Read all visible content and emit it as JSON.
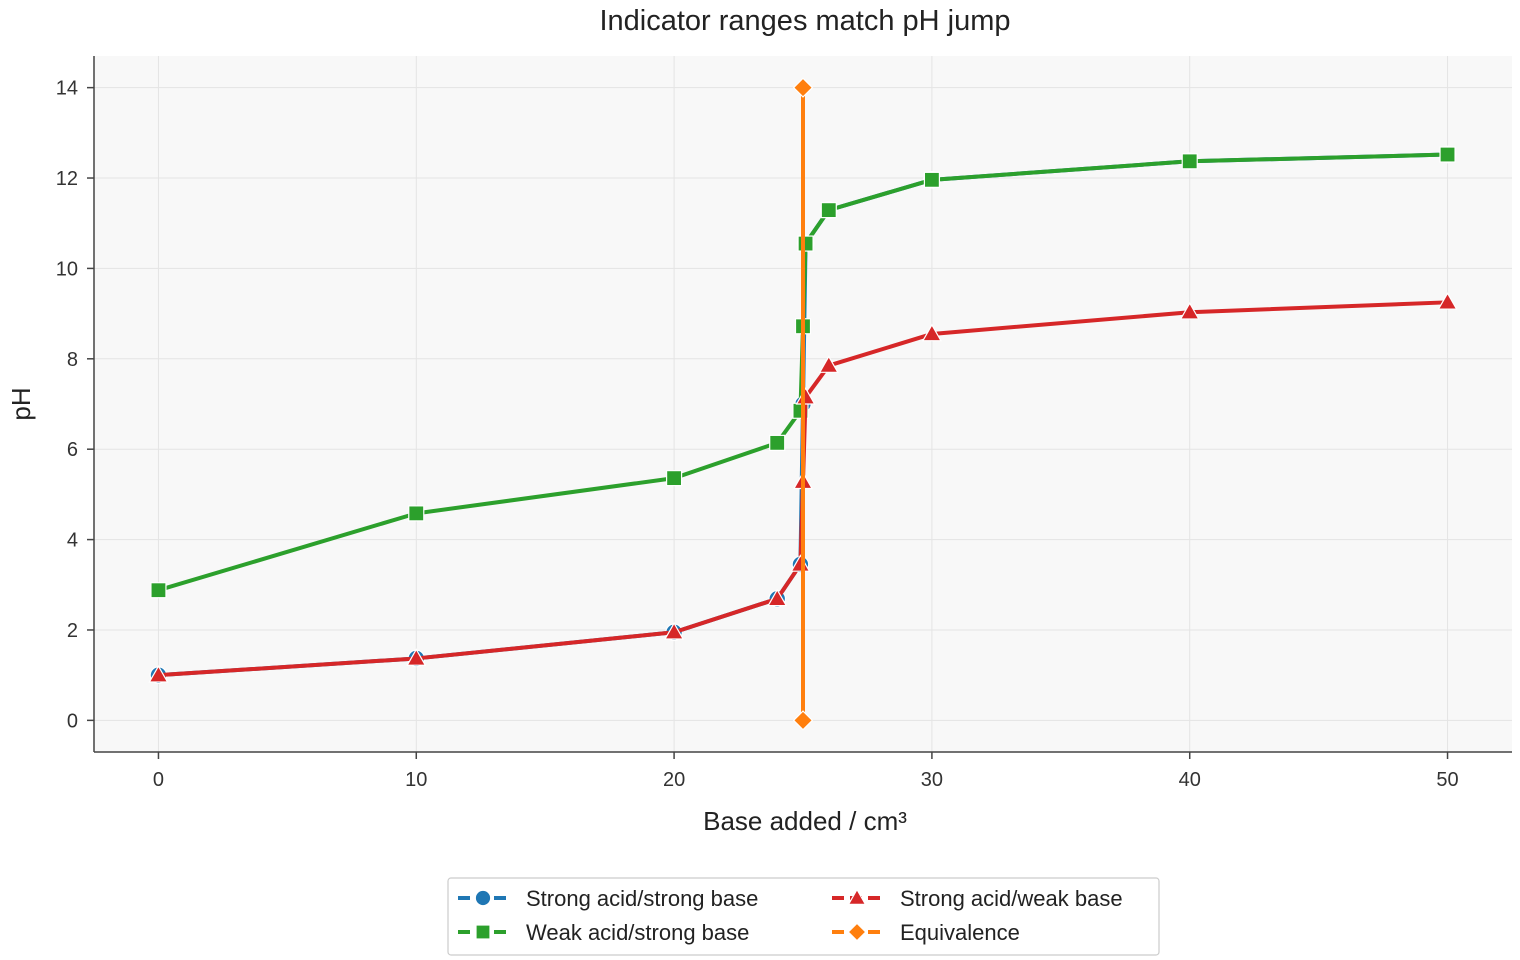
{
  "chart_data": {
    "type": "line",
    "title": "Indicator ranges match pH jump",
    "xlabel": "Base added / cm³",
    "ylabel": "pH",
    "xlim": [
      -2.5,
      52.5
    ],
    "ylim": [
      -0.7,
      14.7
    ],
    "xticks": [
      0,
      10,
      20,
      30,
      40,
      50
    ],
    "yticks": [
      0,
      2,
      4,
      6,
      8,
      10,
      12,
      14
    ],
    "grid": true,
    "legend_position": "bottom-center",
    "series": [
      {
        "name": "Strong acid/strong base",
        "color": "#1f77b4",
        "marker": "circle",
        "x": [
          0,
          10,
          20,
          24,
          24.9,
          25,
          25.1,
          26,
          30,
          40,
          50
        ],
        "y": [
          1.0,
          1.37,
          1.95,
          2.69,
          3.45,
          7.0,
          10.55,
          11.29,
          11.96,
          12.37,
          12.52
        ]
      },
      {
        "name": "Weak acid/strong base",
        "color": "#2ca02c",
        "marker": "square",
        "x": [
          0,
          10,
          20,
          24,
          24.9,
          25,
          25.1,
          26,
          30,
          40,
          50
        ],
        "y": [
          2.88,
          4.58,
          5.36,
          6.14,
          6.85,
          8.72,
          10.55,
          11.29,
          11.96,
          12.37,
          12.52
        ]
      },
      {
        "name": "Strong acid/weak base",
        "color": "#d62728",
        "marker": "triangle",
        "x": [
          0,
          10,
          20,
          24,
          24.9,
          25,
          25.1,
          26,
          30,
          40,
          50
        ],
        "y": [
          1.0,
          1.37,
          1.95,
          2.69,
          3.45,
          5.28,
          7.15,
          7.85,
          8.55,
          9.03,
          9.25
        ]
      },
      {
        "name": "Equivalence",
        "color": "#ff7f0e",
        "marker": "diamond",
        "x": [
          25,
          25
        ],
        "y": [
          0,
          14
        ]
      }
    ]
  }
}
